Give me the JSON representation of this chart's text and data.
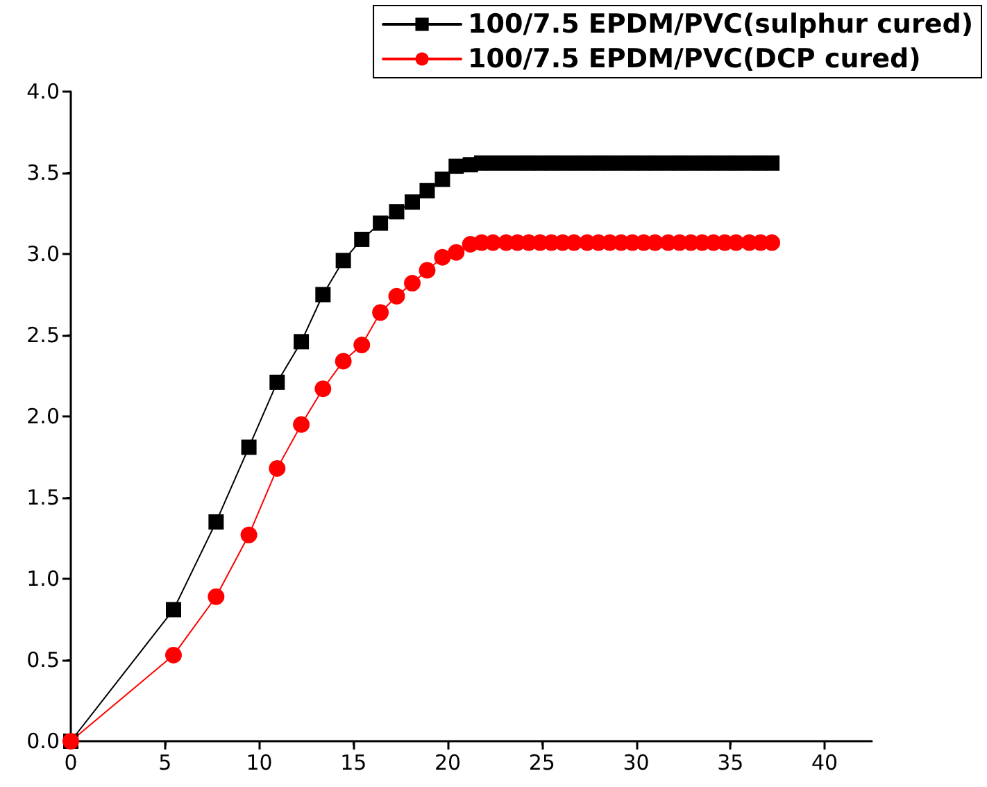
{
  "chart_data": {
    "type": "line",
    "x": [
      0,
      5.45,
      7.71,
      9.45,
      10.95,
      12.23,
      13.38,
      14.46,
      15.44,
      16.43,
      17.29,
      18.12,
      18.91,
      19.72,
      20.45,
      21.2,
      21.8,
      22.4,
      23.1,
      23.7,
      24.3,
      24.9,
      25.5,
      26.1,
      26.7,
      27.4,
      28.0,
      28.6,
      29.2,
      29.8,
      30.4,
      31.0,
      31.7,
      32.3,
      32.9,
      33.5,
      34.1,
      34.7,
      35.3,
      36.0,
      36.6,
      37.2
    ],
    "series": [
      {
        "name": "100/7.5 EPDM/PVC(sulphur cured)",
        "color": "#000000",
        "marker": "square",
        "values": [
          0,
          0.81,
          1.35,
          1.81,
          2.21,
          2.46,
          2.75,
          2.96,
          3.09,
          3.19,
          3.26,
          3.32,
          3.39,
          3.46,
          3.54,
          3.55,
          3.56,
          3.56,
          3.56,
          3.56,
          3.56,
          3.56,
          3.56,
          3.56,
          3.56,
          3.56,
          3.56,
          3.56,
          3.56,
          3.56,
          3.56,
          3.56,
          3.56,
          3.56,
          3.56,
          3.56,
          3.56,
          3.56,
          3.56,
          3.56,
          3.56,
          3.56
        ]
      },
      {
        "name": "100/7.5 EPDM/PVC(DCP cured)",
        "color": "#ff0000",
        "marker": "circle",
        "values": [
          0,
          0.53,
          0.89,
          1.27,
          1.68,
          1.95,
          2.17,
          2.34,
          2.44,
          2.64,
          2.74,
          2.82,
          2.9,
          2.98,
          3.01,
          3.06,
          3.07,
          3.07,
          3.07,
          3.07,
          3.07,
          3.07,
          3.07,
          3.07,
          3.07,
          3.07,
          3.07,
          3.07,
          3.07,
          3.07,
          3.07,
          3.07,
          3.07,
          3.07,
          3.07,
          3.07,
          3.07,
          3.07,
          3.07,
          3.07,
          3.07,
          3.07
        ]
      }
    ],
    "xlim": [
      0,
      42.5
    ],
    "xticks": [
      0,
      5,
      10,
      15,
      20,
      25,
      30,
      35,
      40
    ],
    "ylim": [
      0,
      4
    ],
    "yticks": [
      {
        "value": 0,
        "label": "0.0"
      },
      0.5,
      {
        "value": 1,
        "label": "1.0"
      },
      1.5,
      {
        "value": 2,
        "label": "2.0"
      },
      2.5,
      {
        "value": 3,
        "label": "3.0"
      },
      3.5,
      {
        "value": 4,
        "label": "4.0"
      }
    ],
    "legend": "top right",
    "grid": false,
    "line_style": "solid"
  }
}
